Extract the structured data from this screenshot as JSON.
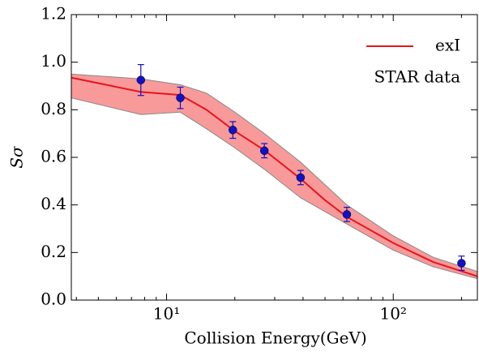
{
  "chart_data": {
    "type": "line",
    "xlabel": "Collision Energy(GeV)",
    "ylabel": "Sσ",
    "xscale": "log",
    "xlim": [
      3.8,
      235
    ],
    "ylim": [
      0,
      1.2
    ],
    "xticks": [
      {
        "value": 10,
        "label": "10¹"
      },
      {
        "value": 100,
        "label": "10²"
      }
    ],
    "xminorticks": [
      4,
      5,
      6,
      7,
      8,
      9,
      20,
      30,
      40,
      50,
      60,
      70,
      80,
      90,
      200
    ],
    "yticks": [
      {
        "value": 0,
        "label": "0.0"
      },
      {
        "value": 0.2,
        "label": "0.2"
      },
      {
        "value": 0.4,
        "label": "0.4"
      },
      {
        "value": 0.6,
        "label": "0.6"
      },
      {
        "value": 0.8,
        "label": "0.8"
      },
      {
        "value": 1.0,
        "label": "1.0"
      },
      {
        "value": 1.2,
        "label": "1.2"
      }
    ],
    "legend": "upper right",
    "band": {
      "color": "#f89a9a",
      "x": [
        3.8,
        7.7,
        11.5,
        15,
        20,
        27,
        39,
        62.4,
        100,
        150,
        235
      ],
      "lower": [
        0.85,
        0.78,
        0.79,
        0.72,
        0.64,
        0.55,
        0.43,
        0.32,
        0.21,
        0.14,
        0.09
      ],
      "upper": [
        0.95,
        0.93,
        0.905,
        0.87,
        0.79,
        0.7,
        0.58,
        0.4,
        0.27,
        0.18,
        0.12
      ]
    },
    "series": [
      {
        "name": "exI",
        "color": "#e8141c",
        "type": "line",
        "x": [
          3.8,
          7.7,
          11.5,
          15,
          20,
          27,
          39,
          50,
          62.4,
          100,
          150,
          235
        ],
        "values": [
          0.935,
          0.875,
          0.862,
          0.8,
          0.71,
          0.63,
          0.51,
          0.42,
          0.35,
          0.24,
          0.16,
          0.1
        ]
      },
      {
        "name": "STAR data",
        "color": "#1010c8",
        "type": "scatter",
        "x": [
          7.7,
          11.5,
          19.6,
          27,
          39,
          62.4,
          200
        ],
        "values": [
          0.925,
          0.85,
          0.715,
          0.628,
          0.515,
          0.36,
          0.155
        ],
        "errors": [
          0.065,
          0.045,
          0.035,
          0.03,
          0.03,
          0.03,
          0.03
        ]
      }
    ]
  }
}
